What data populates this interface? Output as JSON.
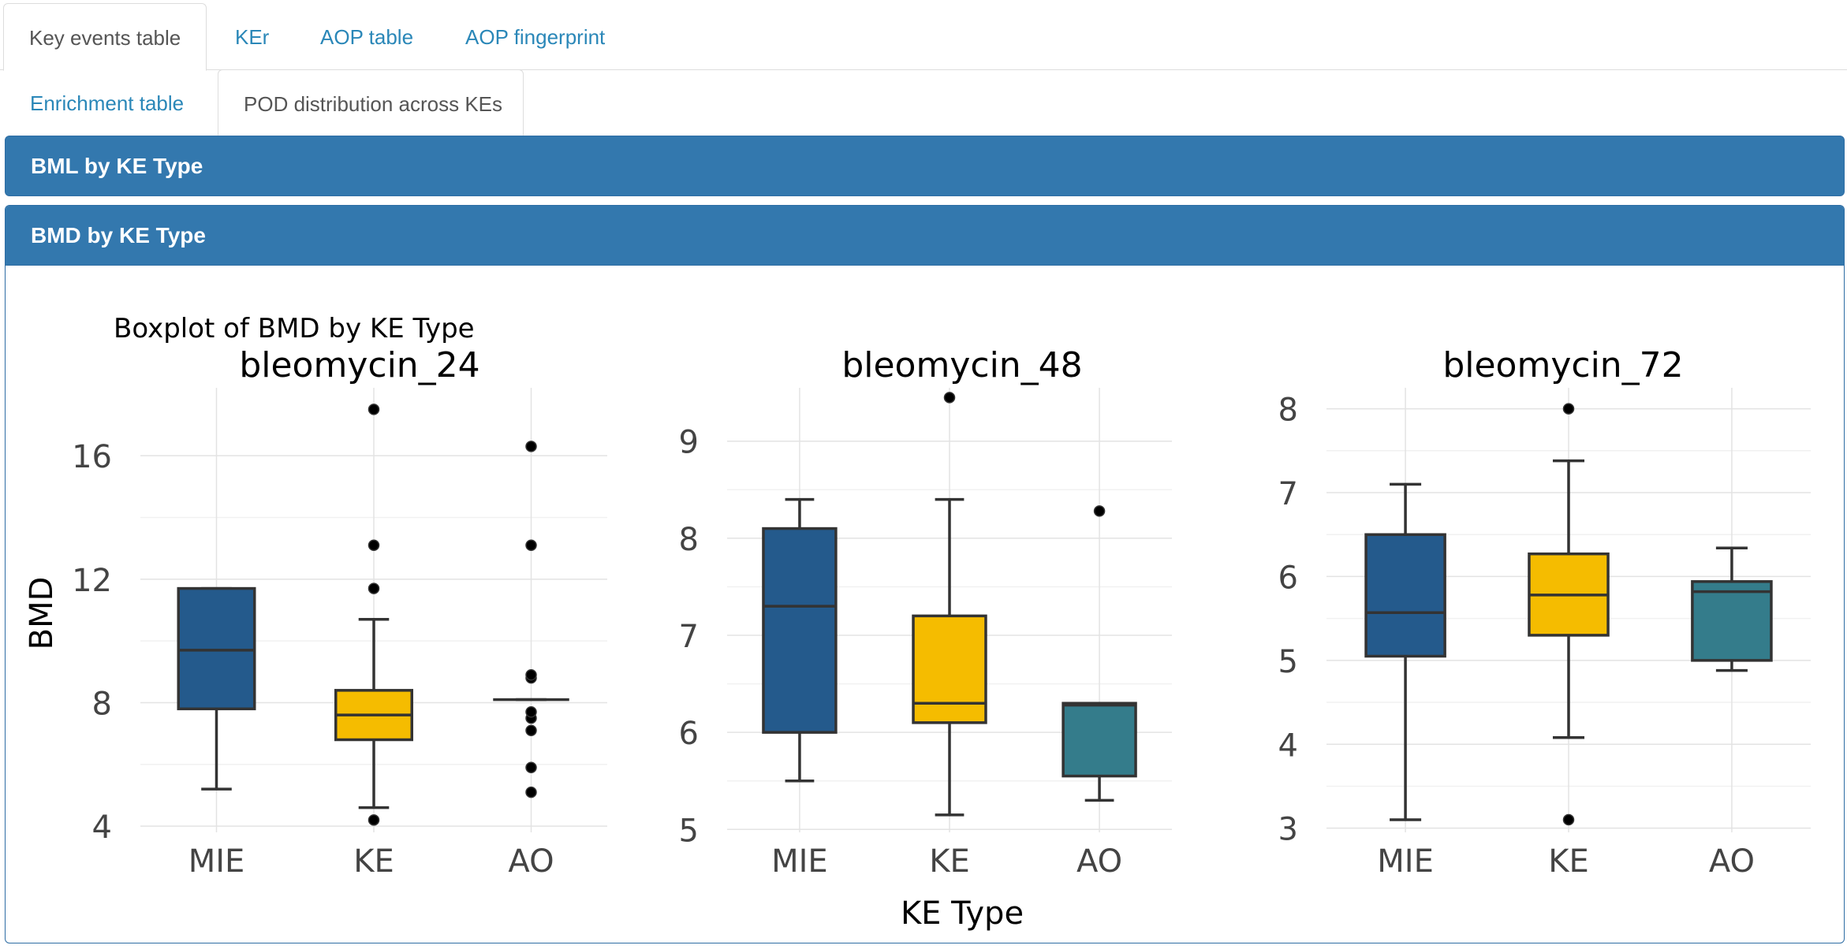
{
  "tabs_row1": [
    {
      "label": "Key events table",
      "active": true
    },
    {
      "label": "KEr",
      "active": false
    },
    {
      "label": "AOP table",
      "active": false
    },
    {
      "label": "AOP fingerprint",
      "active": false
    }
  ],
  "tabs_row2": [
    {
      "label": "Enrichment table",
      "active": false
    },
    {
      "label": "POD distribution across KEs",
      "active": true
    }
  ],
  "panels": {
    "bml_title": "BML by KE Type",
    "bmd_title": "BMD by KE Type"
  },
  "colors": {
    "MIE": "#245a8c",
    "KE": "#f5bc00",
    "AO": "#347c8b",
    "panel_header": "#3378ae",
    "tab_link": "#2a87b8"
  },
  "chart_data": {
    "type": "box",
    "title": "Boxplot of BMD by KE Type",
    "ylabel": "BMD",
    "xlabel": "KE Type",
    "categories": [
      "MIE",
      "KE",
      "AO"
    ],
    "facets": [
      {
        "name": "bleomycin_24",
        "ylim": [
          3.8,
          18.2
        ],
        "yticks": [
          4,
          8,
          12,
          16
        ],
        "boxes": [
          {
            "category": "MIE",
            "min": 5.2,
            "q1": 7.8,
            "median": 9.7,
            "q3": 11.7,
            "max": 11.7,
            "outliers": []
          },
          {
            "category": "KE",
            "min": 4.6,
            "q1": 6.8,
            "median": 7.6,
            "q3": 8.4,
            "max": 10.7,
            "outliers": [
              4.2,
              11.7,
              13.1,
              17.5
            ]
          },
          {
            "category": "AO",
            "min": 8.1,
            "q1": 8.1,
            "median": 8.1,
            "q3": 8.1,
            "max": 8.1,
            "outliers": [
              5.1,
              5.9,
              7.1,
              7.5,
              7.7,
              8.8,
              8.9,
              13.1,
              16.3
            ]
          }
        ]
      },
      {
        "name": "bleomycin_48",
        "ylim": [
          4.97,
          9.55
        ],
        "yticks": [
          5,
          6,
          7,
          8,
          9
        ],
        "boxes": [
          {
            "category": "MIE",
            "min": 5.5,
            "q1": 6.0,
            "median": 7.3,
            "q3": 8.1,
            "max": 8.4,
            "outliers": []
          },
          {
            "category": "KE",
            "min": 5.15,
            "q1": 6.1,
            "median": 6.3,
            "q3": 7.2,
            "max": 8.4,
            "outliers": [
              9.45
            ]
          },
          {
            "category": "AO",
            "min": 5.3,
            "q1": 5.55,
            "median": 6.28,
            "q3": 6.3,
            "max": 6.3,
            "outliers": [
              8.28
            ]
          }
        ]
      },
      {
        "name": "bleomycin_72",
        "ylim": [
          2.95,
          8.25
        ],
        "yticks": [
          3,
          4,
          5,
          6,
          7,
          8
        ],
        "boxes": [
          {
            "category": "MIE",
            "min": 3.1,
            "q1": 5.05,
            "median": 5.57,
            "q3": 6.5,
            "max": 7.1,
            "outliers": []
          },
          {
            "category": "KE",
            "min": 4.08,
            "q1": 5.3,
            "median": 5.78,
            "q3": 6.27,
            "max": 7.38,
            "outliers": [
              3.1,
              8.0
            ]
          },
          {
            "category": "AO",
            "min": 4.88,
            "q1": 5.0,
            "median": 5.82,
            "q3": 5.94,
            "max": 6.34,
            "outliers": []
          }
        ]
      }
    ]
  }
}
